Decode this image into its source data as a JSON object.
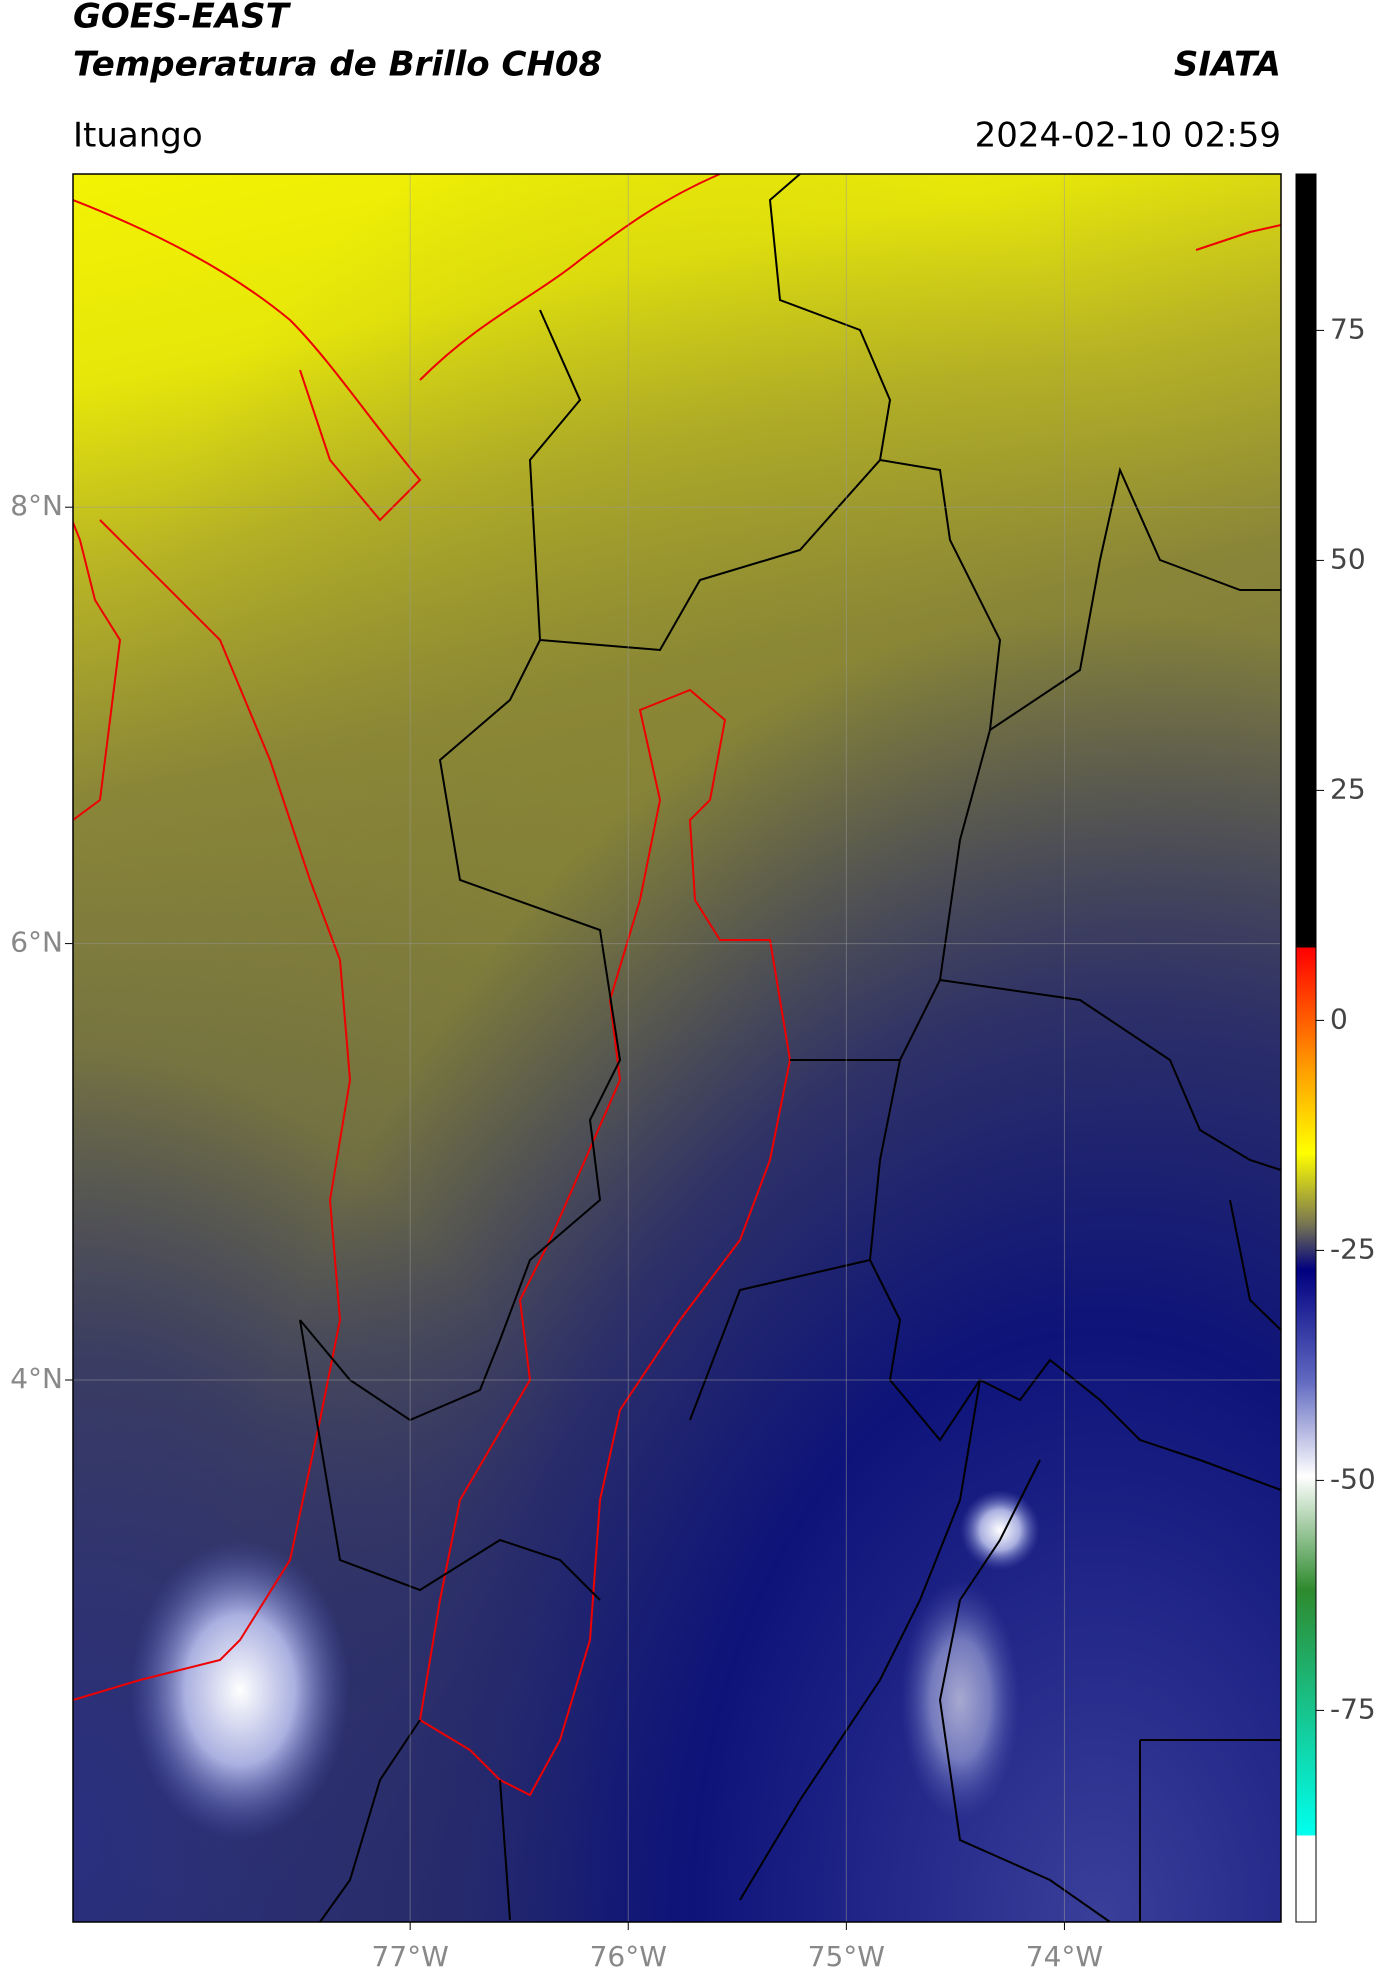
{
  "chart_data": {
    "type": "map",
    "title": "GOES-EAST",
    "subtitle": "Temperatura de Brillo CH08",
    "source": "SIATA",
    "region": "Ituango",
    "timestamp": "2024-02-10 02:59",
    "xlim": [
      -78.546,
      -73.007
    ],
    "ylim": [
      1.516,
      9.527
    ],
    "xticks": [
      {
        "value": -77,
        "label": "77°W"
      },
      {
        "value": -76,
        "label": "76°W"
      },
      {
        "value": -75,
        "label": "75°W"
      },
      {
        "value": -74,
        "label": "74°W"
      }
    ],
    "yticks": [
      {
        "value": 8,
        "label": "8°N"
      },
      {
        "value": 6,
        "label": "6°N"
      },
      {
        "value": 4,
        "label": "4°N"
      }
    ],
    "grid": true,
    "colorbar": {
      "clim": [
        -98,
        92
      ],
      "ticks": [
        75,
        50,
        25,
        0,
        -25,
        -50,
        -75
      ]
    }
  }
}
